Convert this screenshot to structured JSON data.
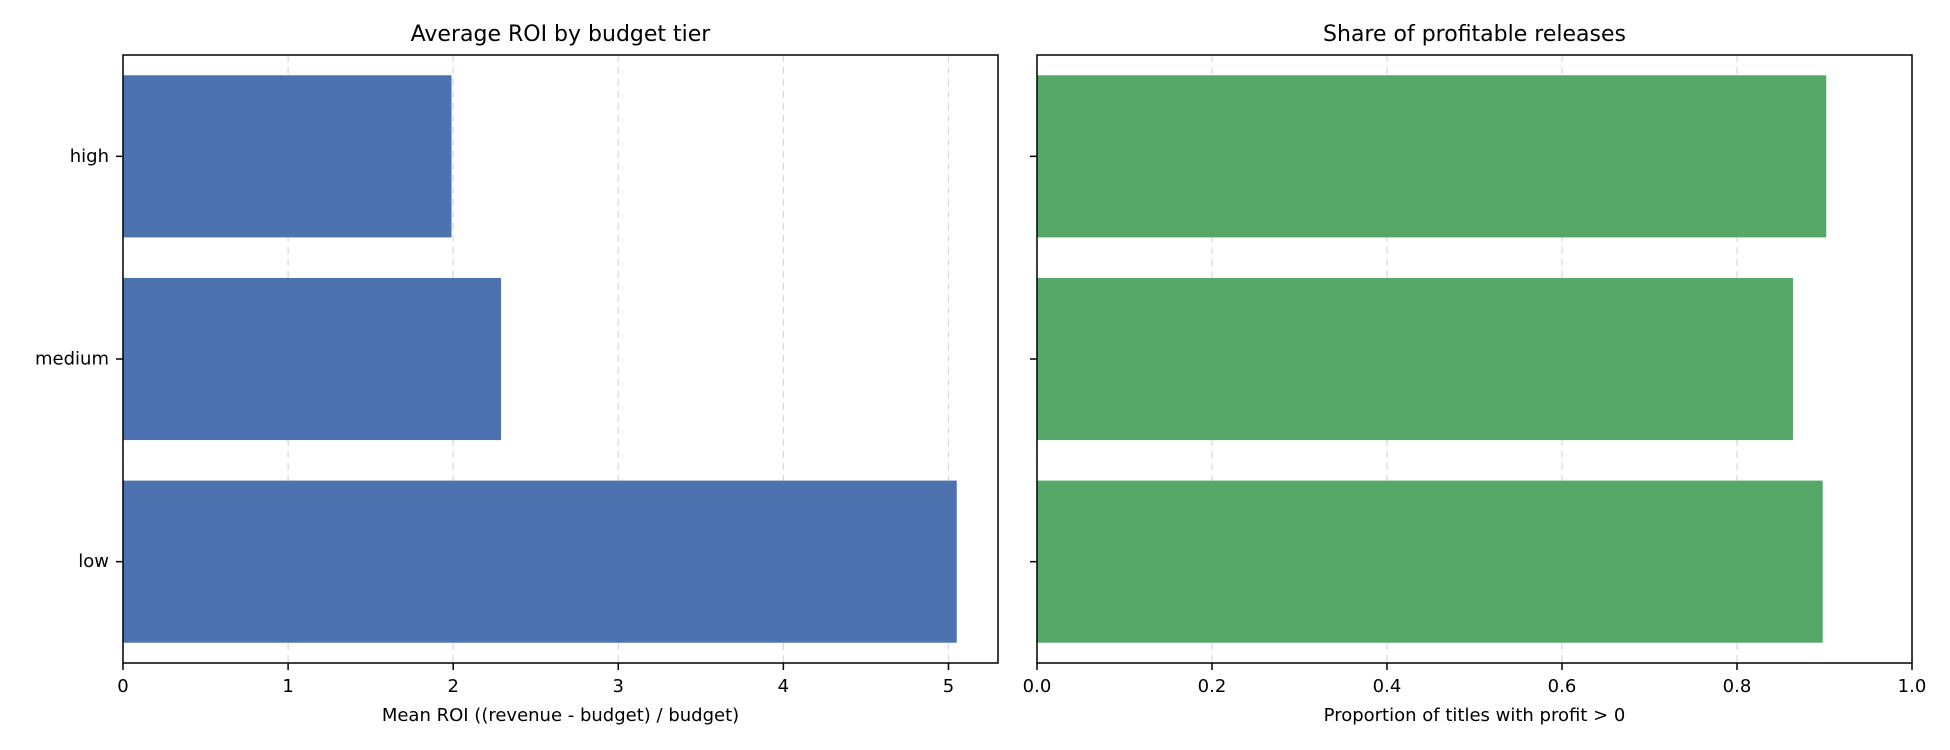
{
  "chart_data": [
    {
      "type": "bar",
      "orientation": "horizontal",
      "title": "Average ROI by budget tier",
      "xlabel": "Mean ROI ((revenue - budget) / budget)",
      "ylabel": "",
      "categories": [
        "low",
        "medium",
        "high"
      ],
      "values": [
        5.05,
        2.29,
        1.99
      ],
      "xlim": [
        0,
        5.3
      ],
      "xticks": [
        "0",
        "1",
        "2",
        "3",
        "4",
        "5"
      ],
      "show_ytick_labels": true,
      "color": "#4c72b0",
      "grid": "x-dashed"
    },
    {
      "type": "bar",
      "orientation": "horizontal",
      "title": "Share of profitable releases",
      "xlabel": "Proportion of titles with profit > 0",
      "ylabel": "",
      "categories": [
        "low",
        "medium",
        "high"
      ],
      "values": [
        0.898,
        0.864,
        0.902
      ],
      "xlim": [
        0,
        1.0
      ],
      "xticks": [
        "0.0",
        "0.2",
        "0.4",
        "0.6",
        "0.8",
        "1.0"
      ],
      "show_ytick_labels": false,
      "color": "#55a868",
      "grid": "x-dashed"
    }
  ]
}
